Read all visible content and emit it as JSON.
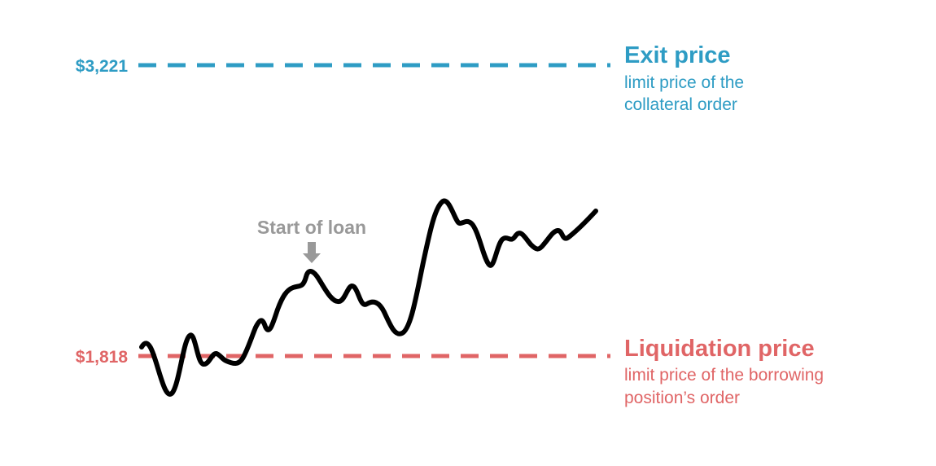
{
  "colors": {
    "exit": "#2e9cc4",
    "liquidation": "#e06566",
    "price": "#000000",
    "annotation": "#999999"
  },
  "exit_line": {
    "price_label": "$3,221",
    "title": "Exit price",
    "subtitle_lines": [
      "limit price of the",
      "collateral order"
    ]
  },
  "liquidation_line": {
    "price_label": "$1,818",
    "title": "Liquidation price",
    "subtitle_lines": [
      "limit price of the borrowing",
      "position’s order"
    ]
  },
  "annotation": {
    "label": "Start of loan",
    "arrow_icon": "down-arrow-icon"
  }
}
